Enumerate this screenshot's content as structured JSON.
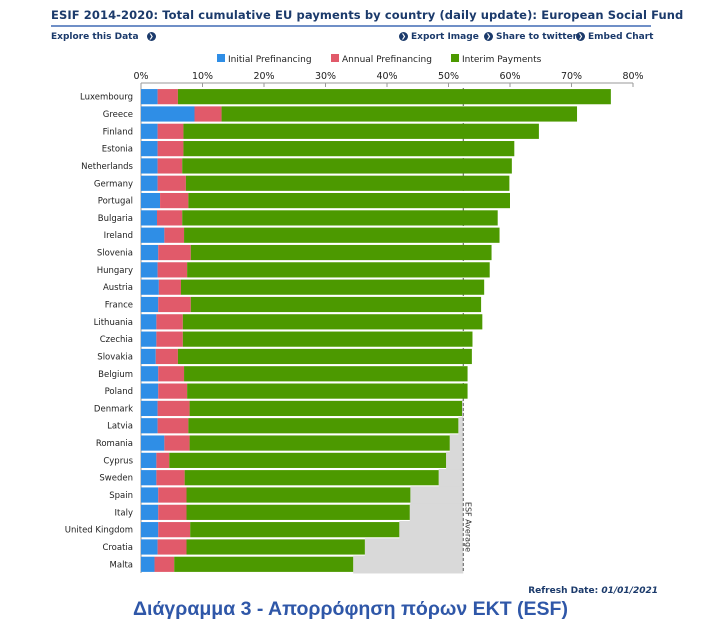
{
  "header": {
    "title": "ESIF 2014-2020: Total cumulative EU payments by country (daily update): European Social Fund",
    "explore_label": "Explore this Data",
    "export_label": "Export Image",
    "share_label": "Share to twitter",
    "embed_label": "Embed Chart"
  },
  "refresh": {
    "label": "Refresh Date:",
    "date": "01/01/2021"
  },
  "caption": "Διάγραμμα 3 - Απορρόφηση πόρων ΕΚΤ (ESF)",
  "colors": {
    "initial": "#2f8ee6",
    "annual": "#e15a6a",
    "interim": "#4c9900",
    "average_fill": "#d9d9d9",
    "text": "#1b3a6b"
  },
  "chart_data": {
    "type": "bar",
    "orientation": "horizontal",
    "stacked": true,
    "xlim": [
      0,
      80
    ],
    "xticks": [
      "0%",
      "10%",
      "20%",
      "30%",
      "40%",
      "50%",
      "60%",
      "70%",
      "80%"
    ],
    "categories": [
      "Luxembourg",
      "Greece",
      "Finland",
      "Estonia",
      "Netherlands",
      "Germany",
      "Portugal",
      "Bulgaria",
      "Ireland",
      "Slovenia",
      "Hungary",
      "Austria",
      "France",
      "Lithuania",
      "Czechia",
      "Slovakia",
      "Belgium",
      "Poland",
      "Denmark",
      "Latvia",
      "Romania",
      "Cyprus",
      "Sweden",
      "Spain",
      "Italy",
      "United Kingdom",
      "Croatia",
      "Malta"
    ],
    "series": [
      {
        "name": "Initial Prefinancing",
        "values": [
          2.7,
          8.7,
          2.7,
          2.7,
          2.7,
          2.7,
          3.1,
          2.6,
          3.8,
          2.8,
          2.7,
          2.9,
          2.8,
          2.5,
          2.5,
          2.4,
          2.8,
          2.8,
          2.7,
          2.7,
          3.8,
          2.5,
          2.5,
          2.8,
          2.8,
          2.8,
          2.7,
          2.2
        ]
      },
      {
        "name": "Annual Prefinancing",
        "values": [
          3.3,
          4.4,
          4.2,
          4.2,
          4.0,
          4.6,
          4.6,
          4.1,
          3.2,
          5.3,
          4.8,
          3.6,
          5.3,
          4.3,
          4.3,
          3.6,
          4.2,
          4.7,
          5.2,
          5.0,
          4.1,
          2.1,
          4.6,
          4.6,
          4.6,
          5.2,
          4.7,
          3.2
        ]
      },
      {
        "name": "Interim Payments",
        "values": [
          70.4,
          57.8,
          57.8,
          53.8,
          53.6,
          52.6,
          52.3,
          51.3,
          51.3,
          48.9,
          49.2,
          49.3,
          47.2,
          48.7,
          47.1,
          47.8,
          46.1,
          45.6,
          44.3,
          43.9,
          42.3,
          45.0,
          41.3,
          36.4,
          36.3,
          34.0,
          29.0,
          29.1
        ]
      }
    ],
    "average": {
      "label": "ESF Average",
      "value": 52.4
    },
    "legend_position": "top-center",
    "grid": true
  }
}
